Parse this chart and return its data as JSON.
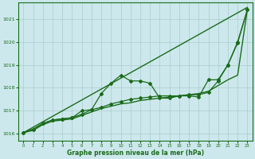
{
  "xlabel": "Graphe pression niveau de la mer (hPa)",
  "xlim": [
    -0.5,
    23.5
  ],
  "ylim": [
    1015.7,
    1021.7
  ],
  "yticks": [
    1016,
    1017,
    1018,
    1019,
    1020,
    1021
  ],
  "xticks": [
    0,
    1,
    2,
    3,
    4,
    5,
    6,
    7,
    8,
    9,
    10,
    11,
    12,
    13,
    14,
    15,
    16,
    17,
    18,
    19,
    20,
    21,
    22,
    23
  ],
  "bg_color": "#cce8ec",
  "grid_color": "#aacccc",
  "line_color": "#1a6b1a",
  "series": [
    {
      "x": [
        0,
        23
      ],
      "y": [
        1016.05,
        1021.5
      ],
      "marker": null,
      "lw": 1.0
    },
    {
      "x": [
        0,
        1,
        2,
        3,
        4,
        5,
        6,
        7,
        8,
        9,
        10,
        11,
        12,
        13,
        14,
        15,
        16,
        17,
        18,
        19,
        20,
        21,
        22,
        23
      ],
      "y": [
        1016.05,
        1016.2,
        1016.45,
        1016.6,
        1016.65,
        1016.7,
        1017.0,
        1017.05,
        1017.75,
        1018.2,
        1018.55,
        1018.3,
        1018.3,
        1018.2,
        1017.55,
        1017.55,
        1017.65,
        1017.65,
        1017.6,
        1018.35,
        1018.35,
        1019.0,
        1019.95,
        1021.4
      ],
      "marker": "D",
      "ms": 2.0,
      "lw": 0.9
    },
    {
      "x": [
        0,
        1,
        2,
        3,
        4,
        5,
        6,
        7,
        8,
        9,
        10,
        11,
        12,
        13,
        14,
        15,
        16,
        17,
        18,
        19,
        20,
        21,
        22,
        23
      ],
      "y": [
        1016.05,
        1016.2,
        1016.45,
        1016.6,
        1016.65,
        1016.7,
        1016.85,
        1017.05,
        1017.15,
        1017.3,
        1017.4,
        1017.5,
        1017.55,
        1017.6,
        1017.65,
        1017.65,
        1017.65,
        1017.7,
        1017.7,
        1017.8,
        1018.3,
        1019.0,
        1020.0,
        1021.4
      ],
      "marker": "D",
      "ms": 2.0,
      "lw": 0.9
    },
    {
      "x": [
        0,
        1,
        2,
        3,
        4,
        5,
        6,
        7,
        8,
        9,
        10,
        11,
        12,
        13,
        14,
        15,
        16,
        17,
        18,
        19,
        20,
        21,
        22,
        23
      ],
      "y": [
        1016.05,
        1016.15,
        1016.4,
        1016.55,
        1016.6,
        1016.65,
        1016.8,
        1016.95,
        1017.1,
        1017.2,
        1017.3,
        1017.35,
        1017.45,
        1017.5,
        1017.55,
        1017.6,
        1017.65,
        1017.7,
        1017.75,
        1017.85,
        1018.1,
        1018.35,
        1018.55,
        1021.4
      ],
      "marker": null,
      "lw": 1.0
    }
  ]
}
